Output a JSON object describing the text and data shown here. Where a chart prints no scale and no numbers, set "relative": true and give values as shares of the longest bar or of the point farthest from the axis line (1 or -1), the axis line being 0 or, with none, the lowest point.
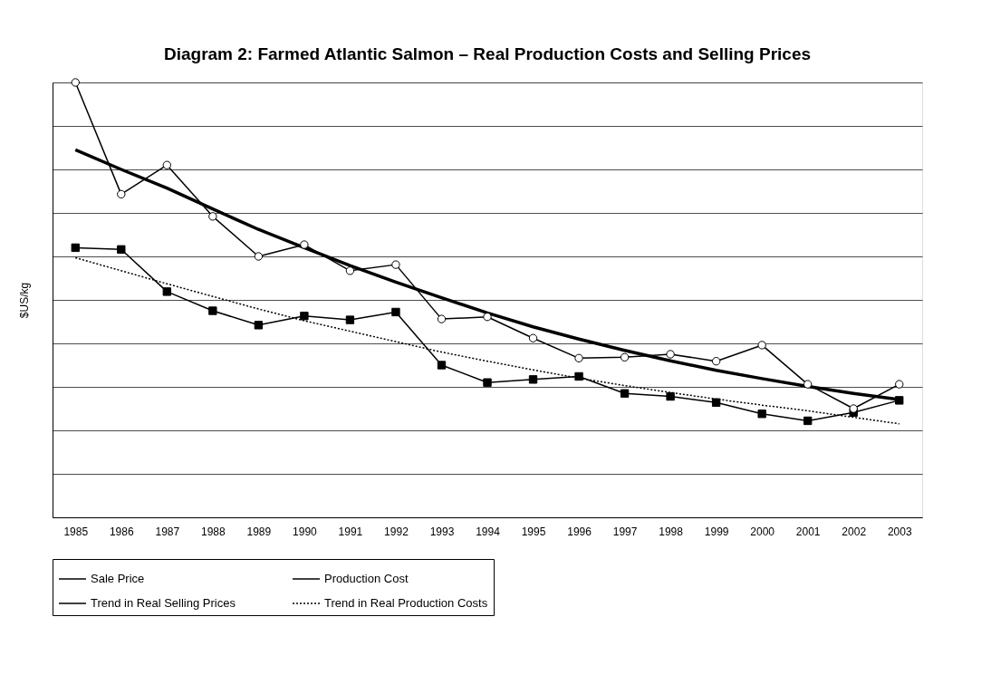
{
  "chart_data": {
    "type": "line",
    "title": "Diagram 2: Farmed Atlantic Salmon – Real Production Costs and Selling Prices",
    "ylabel": "$US/kg",
    "relative": true,
    "grid": "y",
    "legend": "bottom",
    "categories": [
      "1985",
      "1986",
      "1987",
      "1988",
      "1989",
      "1990",
      "1991",
      "1992",
      "1993",
      "1994",
      "1995",
      "1996",
      "1997",
      "1998",
      "1999",
      "2000",
      "2001",
      "2002",
      "2003"
    ],
    "series": [
      {
        "name": "Sale Price",
        "color": "#000000",
        "marker": "circle",
        "line_style": "solid",
        "values": [
          1.0,
          0.743,
          0.81,
          0.692,
          0.6,
          0.627,
          0.567,
          0.581,
          0.456,
          0.461,
          0.412,
          0.366,
          0.368,
          0.375,
          0.359,
          0.396,
          0.306,
          0.25,
          0.306
        ]
      },
      {
        "name": "Production Cost",
        "color": "#000000",
        "marker": "square",
        "line_style": "solid",
        "values": [
          0.62,
          0.616,
          0.519,
          0.475,
          0.442,
          0.463,
          0.454,
          0.472,
          0.35,
          0.31,
          0.317,
          0.324,
          0.285,
          0.278,
          0.264,
          0.238,
          0.222,
          0.241,
          0.269
        ]
      },
      {
        "name": "Trend in Real Selling Prices",
        "type": "line",
        "color": "#000000",
        "marker": "none",
        "line_style": "solid",
        "values": [
          0.845,
          0.8,
          0.757,
          0.709,
          0.662,
          0.62,
          0.579,
          0.541,
          0.505,
          0.47,
          0.438,
          0.41,
          0.384,
          0.36,
          0.338,
          0.319,
          0.301,
          0.285,
          0.271
        ]
      },
      {
        "name": "Trend in Real Production Costs",
        "type": "line",
        "color": "#000000",
        "marker": "none",
        "line_style": "dotted",
        "values": [
          0.597,
          0.567,
          0.537,
          0.508,
          0.479,
          0.452,
          0.428,
          0.404,
          0.38,
          0.359,
          0.339,
          0.32,
          0.303,
          0.287,
          0.272,
          0.258,
          0.245,
          0.23,
          0.215
        ]
      }
    ]
  }
}
